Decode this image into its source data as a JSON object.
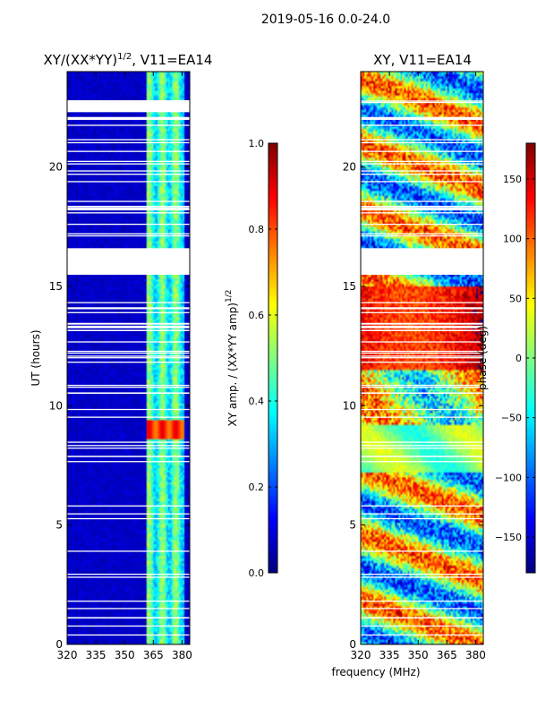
{
  "chart_data": [
    {
      "type": "heatmap",
      "suptitle": "2019-05-16 0.0-24.0",
      "title": "XY/(XX*YY)^1/2, V11=EA14",
      "title_main": "XY/(XX*YY)",
      "title_exp": "1/2",
      "title_suffix": ", V11=EA14",
      "xlabel": "",
      "ylabel": "UT (hours)",
      "xlim": [
        320,
        384
      ],
      "ylim": [
        0,
        24
      ],
      "xticks": [
        "320",
        "335",
        "350",
        "365",
        "380"
      ],
      "yticks": [
        "0",
        "5",
        "10",
        "15",
        "20"
      ],
      "colorbar": {
        "label": "XY amp. / (XX*YY amp)^1/2",
        "label_main": "XY amp. / (XX*YY amp)",
        "label_exp": "1/2",
        "range": [
          0.0,
          1.0
        ],
        "ticks": [
          "0.0",
          "0.2",
          "0.4",
          "0.6",
          "0.8",
          "1.0"
        ],
        "colormap": "jet"
      },
      "data_gaps_hours": [
        [
          16.6,
          15.5
        ],
        [
          22.3,
          22.8
        ]
      ],
      "bright_band_MHz": [
        361,
        381
      ],
      "high_value_rows_hours": [
        8.6,
        9.4
      ]
    },
    {
      "type": "heatmap",
      "title": "XY, V11=EA14",
      "xlabel": "frequency (MHz)",
      "ylabel": "",
      "xlim": [
        320,
        384
      ],
      "ylim": [
        0,
        24
      ],
      "xticks": [
        "320",
        "335",
        "350",
        "365",
        "380"
      ],
      "yticks": [
        "0",
        "5",
        "10",
        "15",
        "20"
      ],
      "colorbar": {
        "label": "phase (deg)",
        "range": [
          -180,
          180
        ],
        "ticks": [
          "−150",
          "−100",
          "−50",
          "0",
          "50",
          "100",
          "150"
        ],
        "colormap": "jet"
      },
      "data_gaps_hours": [
        [
          16.6,
          15.5
        ]
      ]
    }
  ]
}
